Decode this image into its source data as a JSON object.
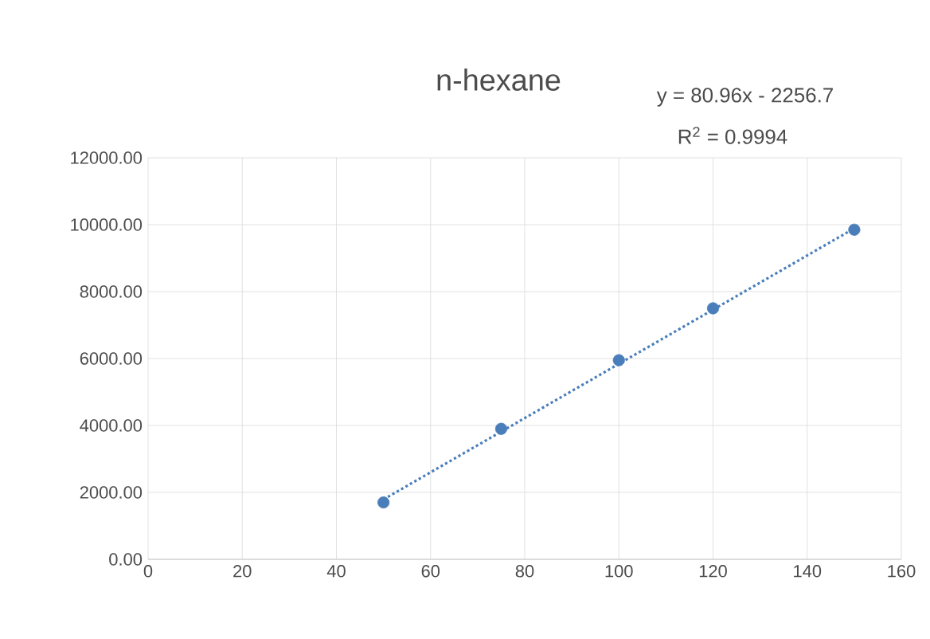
{
  "chart_data": {
    "type": "scatter",
    "title": "n-hexane",
    "annotations": [
      "y = 80.96x - 2256.7",
      "R$^{2}$ = 0.9994"
    ],
    "x": [
      50,
      75,
      100,
      120,
      150
    ],
    "series": [
      {
        "color": "#4a7ebb",
        "marker": "circle",
        "values": [
          1700,
          3900,
          5950,
          7500,
          9850
        ]
      },
      {
        "type": "line",
        "color": "#4a7ebb",
        "line_style": "dotted",
        "marker": "none",
        "x": [
          50,
          150
        ],
        "values": [
          1790,
          9890
        ]
      }
    ],
    "xlim": [
      0,
      160
    ],
    "xticks": [
      0,
      20,
      40,
      60,
      80,
      100,
      120,
      140,
      160
    ],
    "ylim": [
      0,
      12000
    ],
    "yticks": [
      {
        "value": 0,
        "label": "0.00"
      },
      {
        "value": 2000,
        "label": "2000.00"
      },
      {
        "value": 4000,
        "label": "4000.00"
      },
      {
        "value": 6000,
        "label": "6000.00"
      },
      {
        "value": 8000,
        "label": "8000.00"
      },
      {
        "value": 10000,
        "label": "10000.00"
      },
      {
        "value": 12000,
        "label": "12000.00"
      }
    ],
    "grid": true
  }
}
